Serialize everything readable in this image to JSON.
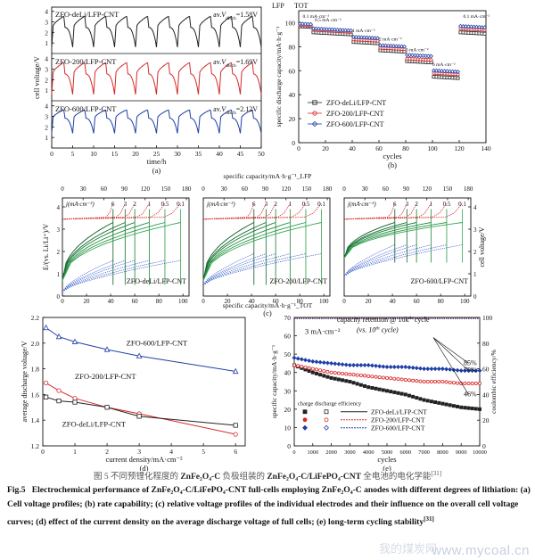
{
  "caption_cn_parts": {
    "pre": "图 5   不同预锂化程度的 ",
    "m1": "ZnFe₂O₄-C",
    "mid": " 负极组装的 ",
    "m2": "ZnFe₂O₄-C/LiFePO₄-CNT",
    "post": " 全电池的电化学能",
    "ref": "[31]"
  },
  "caption_en": {
    "label": "Fig.5",
    "text": "Electrochemical performance of ZnFe₂O₄-C/LiFePO₄-CNT full-cells employing ZnFe₂O₄-C anodes with different degrees of lithiation: (a) Cell voltage profiles; (b) rate capability; (c) relative voltage profiles of the individual electrodes and their influence on the overall cell voltage curves; (d) effect of the current density on the average discharge voltage of full cells; (e) long-term cycling stability",
    "ref": "[31]"
  },
  "watermark": "www.mycoal.cn",
  "watermark_cn": "我的煤炭网",
  "chart_data": [
    {
      "panel": "a",
      "type": "line",
      "xlabel": "time/h",
      "ylabel": "cell voltage/V",
      "xlim": [
        0,
        50
      ],
      "x_ticks": [
        0,
        5,
        10,
        15,
        20,
        25,
        30,
        35,
        40,
        45,
        50
      ],
      "y_ticks": [
        1,
        2,
        3,
        4
      ],
      "cycles_shown": 10,
      "series": [
        {
          "name": "ZFO-deLi/LFP-CNT",
          "annotation": "av.V_disch=1.58V",
          "v_min": 0.6,
          "v_max": 3.5,
          "color": "#222222"
        },
        {
          "name": "ZFO-200/LFP-CNT",
          "annotation": "av.V_disch=1.69V",
          "v_min": 0.6,
          "v_max": 3.6,
          "color": "#d62828"
        },
        {
          "name": "ZFO-600/LFP-CNT",
          "annotation": "av.V_disch=2.12V",
          "v_min": 1.4,
          "v_max": 3.6,
          "color": "#1f3fa6"
        }
      ]
    },
    {
      "panel": "b",
      "type": "scatter",
      "xlabel": "cycles",
      "ylabel": "specific discharge capacity/mA·h·g⁻¹",
      "top_labels": [
        "LFP",
        "TOT"
      ],
      "xlim": [
        0,
        140
      ],
      "ylim": [
        0,
        110
      ],
      "x_ticks": [
        0,
        20,
        40,
        60,
        80,
        100,
        120,
        140
      ],
      "y_ticks": [
        0,
        20,
        40,
        60,
        80,
        100
      ],
      "rate_labels": [
        "0.1 mA·cm⁻²",
        "0.5 mA·cm⁻²",
        "1 mA·cm⁻²",
        "2 mA·cm⁻²",
        "3 mA·cm⁻²",
        "6 mA·cm⁻²",
        "0.1 mA·cm⁻²"
      ],
      "segments": [
        [
          0,
          10
        ],
        [
          10,
          40
        ],
        [
          40,
          60
        ],
        [
          60,
          80
        ],
        [
          80,
          100
        ],
        [
          100,
          120
        ],
        [
          120,
          140
        ]
      ],
      "series": [
        {
          "name": "ZFO-deLi/LFP-CNT",
          "marker": "square",
          "color": "#222222",
          "values": [
            97,
            92,
            84,
            77,
            68,
            55,
            92
          ]
        },
        {
          "name": "ZFO-200/LFP-CNT",
          "marker": "circle",
          "color": "#d62828",
          "values": [
            98,
            94,
            86,
            79,
            70,
            58,
            95
          ]
        },
        {
          "name": "ZFO-600/LFP-CNT",
          "marker": "diamond",
          "color": "#1f3fa6",
          "values": [
            99,
            95,
            88,
            81,
            73,
            60,
            97
          ]
        }
      ]
    },
    {
      "panel": "c",
      "type": "line",
      "xlabel": "specific capacity/mA·h·g⁻¹_TOT",
      "x2label": "specific capacity/mA·h·g⁻¹_LFP",
      "ylabel_left": "E/(vs. Li/Li⁺)/V",
      "ylabel_right": "cell voltage/V",
      "x_ticks": [
        0,
        20,
        40,
        60,
        80,
        100
      ],
      "x2_ticks": [
        0,
        30,
        60,
        90,
        120,
        150,
        180
      ],
      "y_ticks": [
        0,
        1,
        2,
        3,
        4
      ],
      "current_density_label": "j(mA·cm⁻²)",
      "current_densities": [
        "6",
        "3",
        "2",
        "1",
        "0.5",
        "0.1"
      ],
      "subpanels": [
        "ZFO-deLi/LFP-CNT",
        "ZFO-200/LFP-CNT",
        "ZFO-600/LFP-CNT"
      ]
    },
    {
      "panel": "d",
      "type": "line",
      "xlabel": "current density/mA·cm⁻²",
      "ylabel": "average discharge voltage/V",
      "xlim": [
        0,
        6.3
      ],
      "ylim": [
        1.2,
        2.2
      ],
      "x_ticks": [
        0,
        1,
        2,
        3,
        4,
        5,
        6
      ],
      "y_ticks": [
        1.2,
        1.4,
        1.6,
        1.8,
        2.0,
        2.2
      ],
      "series": [
        {
          "name": "ZFO-600/LFP-CNT",
          "color": "#1f3fa6",
          "marker": "triangle",
          "x": [
            0.1,
            0.5,
            1,
            2,
            3,
            6
          ],
          "y": [
            2.12,
            2.05,
            2.01,
            1.95,
            1.9,
            1.78
          ]
        },
        {
          "name": "ZFO-200/LFP-CNT",
          "color": "#d62828",
          "marker": "circle",
          "x": [
            0.1,
            0.5,
            1,
            2,
            3,
            6
          ],
          "y": [
            1.69,
            1.63,
            1.57,
            1.5,
            1.45,
            1.29
          ]
        },
        {
          "name": "ZFO-deLi/LFP-CNT",
          "color": "#222222",
          "marker": "square",
          "x": [
            0.1,
            0.5,
            1,
            2,
            3,
            6
          ],
          "y": [
            1.58,
            1.55,
            1.54,
            1.5,
            1.43,
            1.36
          ]
        }
      ]
    },
    {
      "panel": "e",
      "type": "scatter",
      "xlabel": "cycles",
      "ylabel": "specific capacity/mA·h·g⁻¹",
      "ylabel_right": "coulombic efficiency/%",
      "xlim": [
        0,
        10000
      ],
      "ylim": [
        0,
        70
      ],
      "ylim_right": [
        0,
        100
      ],
      "x_ticks": [
        0,
        1000,
        2000,
        3000,
        4000,
        5000,
        6000,
        7000,
        8000,
        9000,
        10000
      ],
      "y_ticks": [
        0,
        10,
        20,
        30,
        40,
        50,
        60,
        70
      ],
      "y2_ticks": [
        0,
        20,
        40,
        60,
        80,
        100
      ],
      "current_label": "3 mA·cm⁻²",
      "retention_title": "capacity retention @ 10k",
      "retention_title_suffix": " cycle",
      "retention_sub": "(vs. 10",
      "retention_sub_suffix": " cycle)",
      "sup_th": "th",
      "retention_values": [
        "85%",
        "79%",
        "46%"
      ],
      "legend_header": [
        "charge",
        "discharge",
        "efficiency"
      ],
      "coulombic_efficiency": 100,
      "series": [
        {
          "name": "ZFO-deLi/LFP-CNT",
          "color": "#222222",
          "x": [
            0,
            1000,
            2000,
            3000,
            4000,
            5000,
            6000,
            7000,
            8000,
            9000,
            10000
          ],
          "y": [
            44,
            40,
            37,
            35,
            32,
            30,
            28,
            25,
            23,
            21,
            20
          ]
        },
        {
          "name": "ZFO-200/LFP-CNT",
          "color": "#d62828",
          "x": [
            0,
            1000,
            2000,
            3000,
            4000,
            5000,
            6000,
            7000,
            8000,
            9000,
            10000
          ],
          "y": [
            44,
            42,
            40,
            39,
            38,
            37,
            36,
            35,
            35,
            34,
            34
          ]
        },
        {
          "name": "ZFO-600/LFP-CNT",
          "color": "#1f3fa6",
          "x": [
            0,
            1000,
            2000,
            3000,
            4000,
            5000,
            6000,
            7000,
            8000,
            9000,
            10000
          ],
          "y": [
            48,
            46,
            45,
            44,
            44,
            43,
            43,
            42,
            42,
            41,
            41
          ]
        }
      ]
    }
  ]
}
